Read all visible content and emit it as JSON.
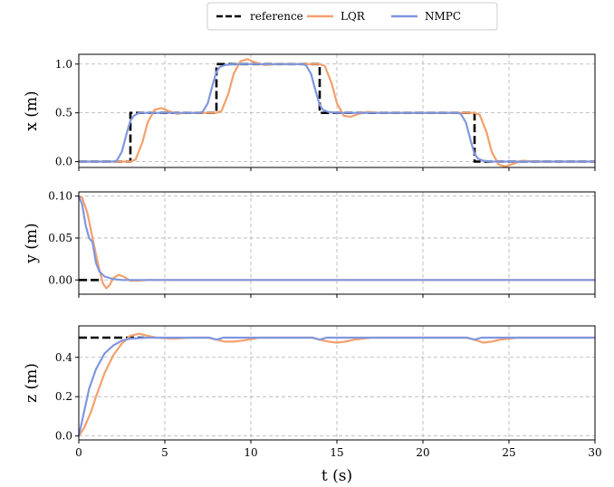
{
  "colors": {
    "reference": "#000000",
    "LQR": "#f4a06c",
    "NMPC": "#8096e0"
  },
  "legend": {
    "entries": [
      "reference",
      "LQR",
      "NMPC"
    ],
    "placement": "top-center"
  },
  "chart_data": [
    {
      "type": "line",
      "ylabel": "x (m)",
      "xlabel": "",
      "xlim": [
        0,
        30
      ],
      "ylim": [
        -0.06,
        1.1
      ],
      "xticks": [
        "0",
        "5",
        "10",
        "15",
        "20",
        "25",
        "30"
      ],
      "yticks": [
        "0.0",
        "0.5",
        "1.0"
      ],
      "grid": true,
      "series": [
        {
          "name": "reference",
          "style": "dashed",
          "x": [
            0,
            3,
            3,
            8,
            8,
            14,
            14,
            23,
            23,
            30
          ],
          "y": [
            0,
            0,
            0.5,
            0.5,
            1.0,
            1.0,
            0.5,
            0.5,
            0,
            0
          ]
        },
        {
          "name": "LQR",
          "x": [
            0,
            3.0,
            3.3,
            3.7,
            4.0,
            4.4,
            4.8,
            5.2,
            5.7,
            6.2,
            7,
            8.0,
            8.3,
            8.7,
            9.0,
            9.4,
            9.8,
            10.2,
            10.8,
            11.5,
            13,
            14.0,
            14.3,
            14.7,
            15.0,
            15.4,
            15.8,
            16.3,
            16.8,
            17.5,
            20,
            23.0,
            23.3,
            23.7,
            24.0,
            24.4,
            24.8,
            25.3,
            25.8,
            26.5,
            30
          ],
          "y": [
            0,
            0,
            0.02,
            0.2,
            0.4,
            0.53,
            0.55,
            0.52,
            0.49,
            0.5,
            0.5,
            0.5,
            0.52,
            0.7,
            0.9,
            1.03,
            1.05,
            1.02,
            0.99,
            1.0,
            1.0,
            1.0,
            0.98,
            0.8,
            0.6,
            0.47,
            0.46,
            0.49,
            0.51,
            0.5,
            0.5,
            0.5,
            0.48,
            0.3,
            0.1,
            -0.03,
            -0.05,
            -0.02,
            0.01,
            0,
            0
          ]
        },
        {
          "name": "NMPC",
          "x": [
            0,
            2.0,
            2.2,
            2.5,
            2.8,
            3.0,
            3.2,
            3.5,
            4.0,
            5,
            7.0,
            7.2,
            7.5,
            7.8,
            8.0,
            8.2,
            8.5,
            9.0,
            13.0,
            13.2,
            13.5,
            13.8,
            14.0,
            14.2,
            14.5,
            15.0,
            22.0,
            22.2,
            22.5,
            22.8,
            23.0,
            23.2,
            23.5,
            24.0,
            30
          ],
          "y": [
            0,
            0,
            0.01,
            0.1,
            0.3,
            0.42,
            0.47,
            0.5,
            0.5,
            0.5,
            0.5,
            0.51,
            0.6,
            0.8,
            0.92,
            0.97,
            0.99,
            1.0,
            1.0,
            0.99,
            0.9,
            0.7,
            0.58,
            0.53,
            0.51,
            0.5,
            0.5,
            0.49,
            0.4,
            0.2,
            0.08,
            0.03,
            0.01,
            0,
            0
          ]
        }
      ]
    },
    {
      "type": "line",
      "ylabel": "y (m)",
      "xlabel": "",
      "xlim": [
        0,
        30
      ],
      "ylim": [
        -0.017,
        0.105
      ],
      "xticks": [
        "0",
        "5",
        "10",
        "15",
        "20",
        "25",
        "30"
      ],
      "yticks": [
        "0.00",
        "0.05",
        "0.10"
      ],
      "grid": true,
      "series": [
        {
          "name": "reference",
          "style": "dashed",
          "x": [
            0,
            1.2
          ],
          "y": [
            0,
            0
          ]
        },
        {
          "name": "LQR",
          "x": [
            0,
            0.2,
            0.5,
            0.8,
            1.0,
            1.2,
            1.4,
            1.6,
            1.8,
            2.0,
            2.3,
            2.6,
            3.0,
            3.4,
            4.0,
            30
          ],
          "y": [
            0.1,
            0.098,
            0.08,
            0.05,
            0.03,
            0.012,
            -0.004,
            -0.01,
            -0.006,
            0.002,
            0.006,
            0.004,
            -0.001,
            -0.001,
            0,
            0
          ]
        },
        {
          "name": "NMPC",
          "x": [
            0,
            0.2,
            0.4,
            0.6,
            0.8,
            1.0,
            1.2,
            1.5,
            2.0,
            2.5,
            3.0,
            30
          ],
          "y": [
            0.1,
            0.09,
            0.065,
            0.05,
            0.045,
            0.02,
            0.01,
            0.004,
            0.001,
            0,
            0,
            0
          ]
        }
      ]
    },
    {
      "type": "line",
      "ylabel": "z (m)",
      "xlabel": "t (s)",
      "xlim": [
        0,
        30
      ],
      "ylim": [
        -0.02,
        0.56
      ],
      "xticks": [
        "0",
        "5",
        "10",
        "15",
        "20",
        "25",
        "30"
      ],
      "yticks": [
        "0.0",
        "0.2",
        "0.4"
      ],
      "grid": true,
      "series": [
        {
          "name": "reference",
          "style": "dashed",
          "x": [
            0,
            3.8
          ],
          "y": [
            0.5,
            0.5
          ]
        },
        {
          "name": "LQR",
          "x": [
            0,
            0.3,
            0.7,
            1.0,
            1.5,
            2.0,
            2.5,
            3.0,
            3.5,
            4.0,
            4.5,
            5.5,
            6.5,
            7.5,
            8.0,
            8.5,
            9.0,
            9.5,
            10.5,
            13.5,
            14.0,
            14.5,
            15.0,
            15.5,
            16.0,
            17.0,
            22.5,
            23.0,
            23.5,
            24.0,
            24.5,
            25.5,
            30
          ],
          "y": [
            0,
            0.04,
            0.12,
            0.2,
            0.32,
            0.41,
            0.47,
            0.51,
            0.52,
            0.51,
            0.5,
            0.495,
            0.5,
            0.5,
            0.49,
            0.48,
            0.48,
            0.485,
            0.5,
            0.5,
            0.49,
            0.48,
            0.475,
            0.48,
            0.49,
            0.5,
            0.5,
            0.49,
            0.475,
            0.48,
            0.49,
            0.5,
            0.5
          ]
        },
        {
          "name": "NMPC",
          "x": [
            0,
            0.3,
            0.6,
            1.0,
            1.5,
            2.0,
            2.5,
            3.0,
            4.0,
            5,
            7.6,
            8.0,
            8.4,
            13.6,
            14.0,
            14.4,
            22.6,
            23.0,
            23.4,
            30
          ],
          "y": [
            0,
            0.12,
            0.24,
            0.34,
            0.42,
            0.46,
            0.485,
            0.495,
            0.5,
            0.5,
            0.5,
            0.49,
            0.5,
            0.5,
            0.49,
            0.5,
            0.5,
            0.49,
            0.5,
            0.5
          ]
        }
      ]
    }
  ]
}
